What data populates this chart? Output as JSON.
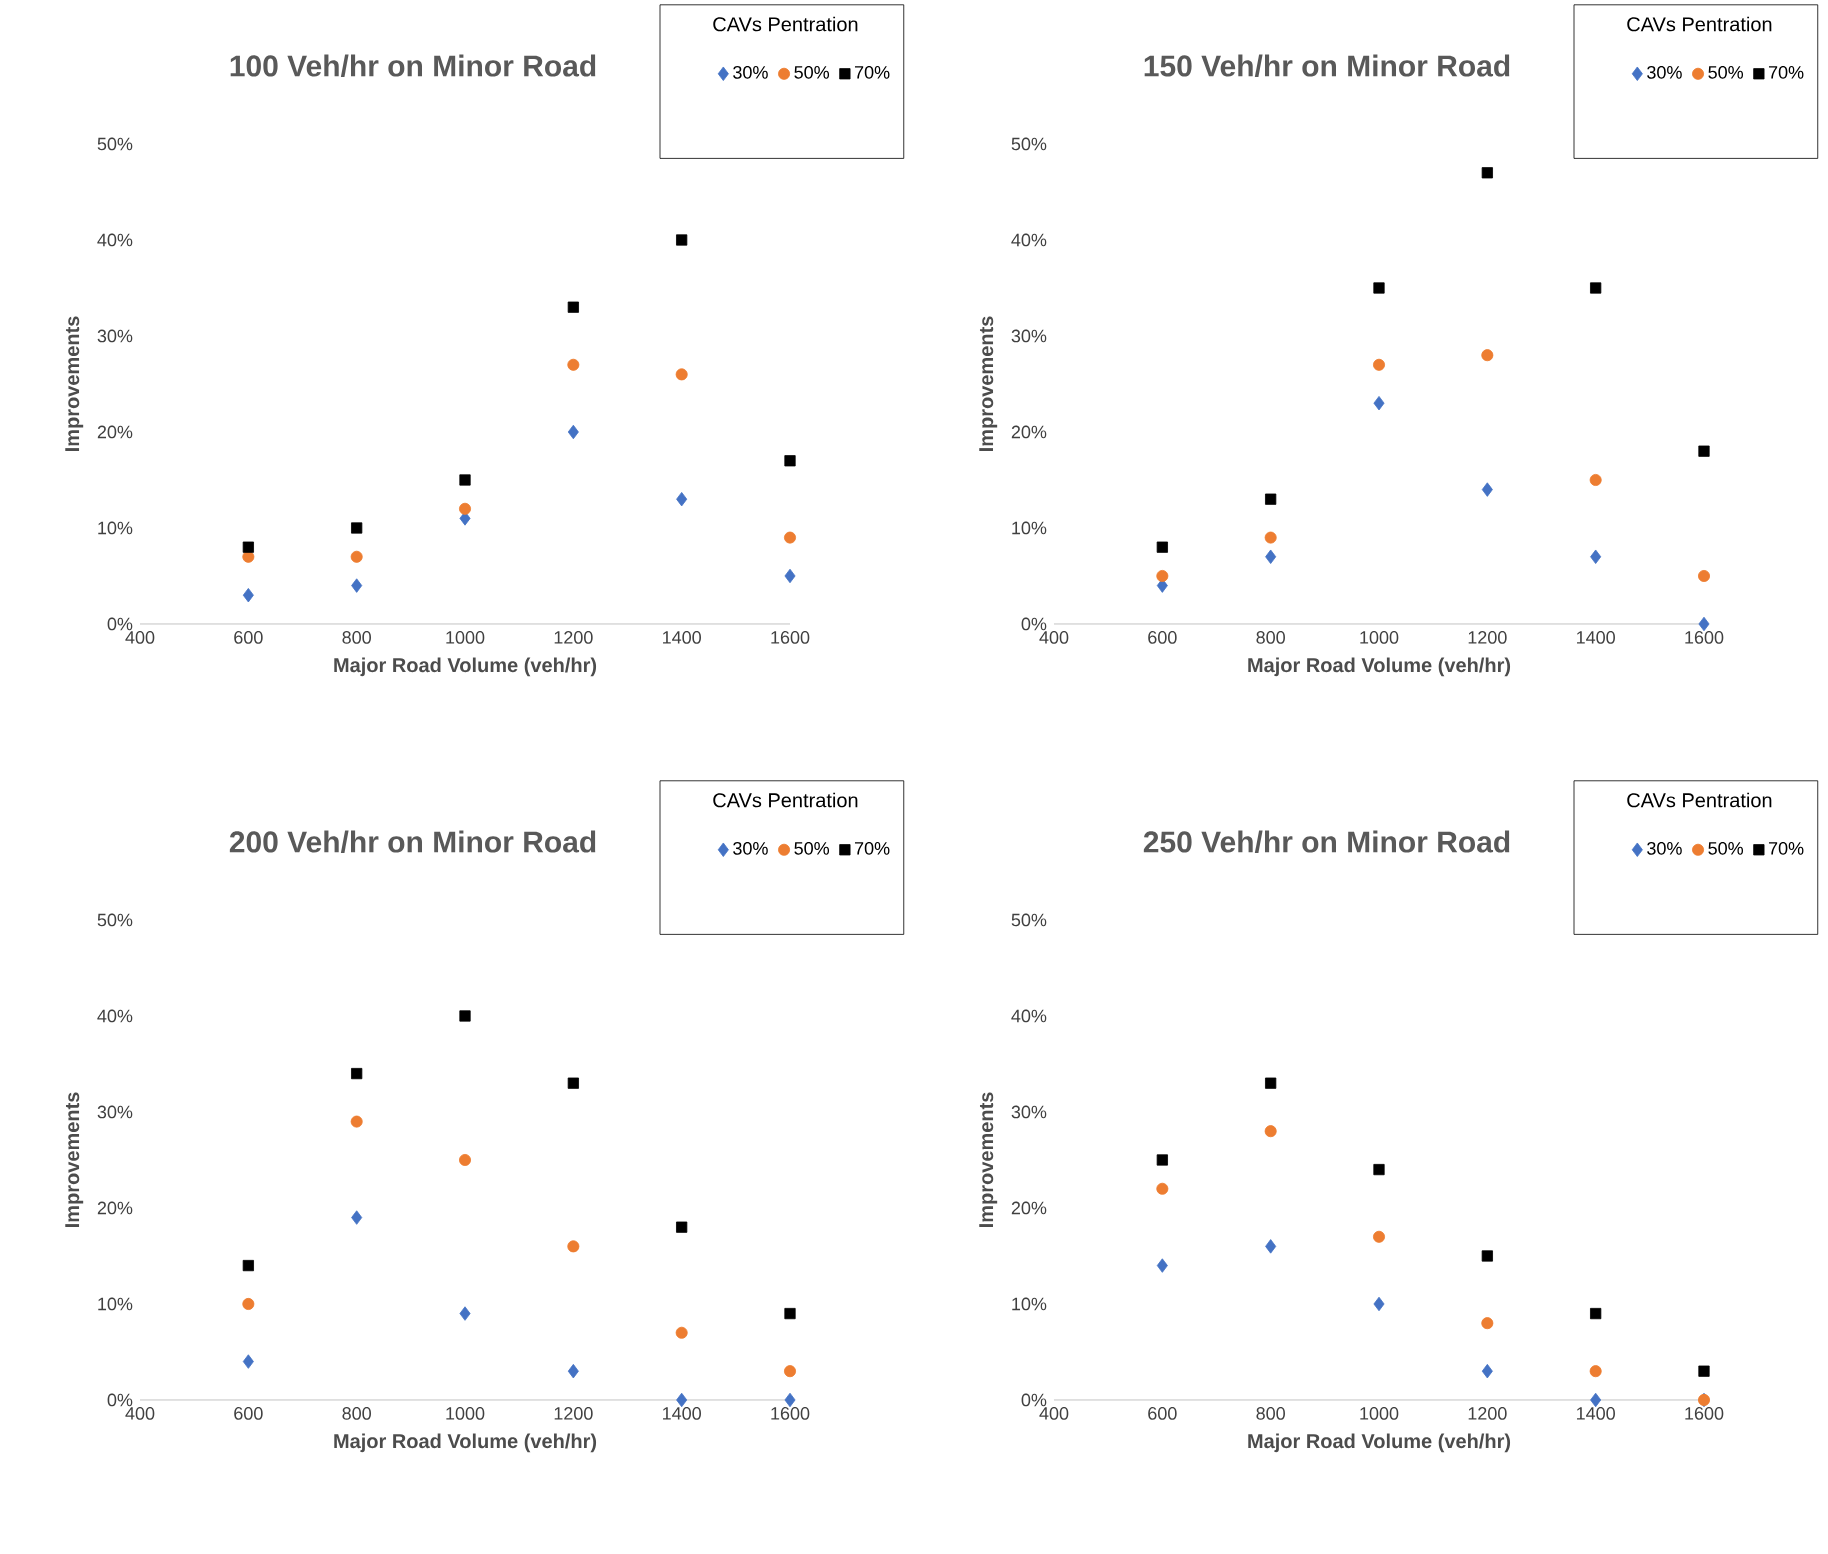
{
  "chart_data": [
    {
      "type": "scatter",
      "title": "100 Veh/hr on Minor Road",
      "xlabel": "Major Road Volume (veh/hr)",
      "ylabel": "Improvements",
      "legend_title": "CAVs Pentration",
      "legend": "top right",
      "x": [
        600,
        800,
        1000,
        1200,
        1400,
        1600
      ],
      "xlim": [
        400,
        1600
      ],
      "xticks": [
        400,
        600,
        800,
        1000,
        1200,
        1400,
        1600
      ],
      "ylim": [
        0,
        50
      ],
      "yticks": [
        {
          "value": 0,
          "label": "0%"
        },
        {
          "value": 10,
          "label": "10%"
        },
        {
          "value": 20,
          "label": "20%"
        },
        {
          "value": 30,
          "label": "30%"
        },
        {
          "value": 40,
          "label": "40%"
        },
        {
          "value": 50,
          "label": "50%"
        }
      ],
      "series": [
        {
          "name": "30%",
          "color": "#4472c4",
          "marker": "diamond",
          "values": [
            3,
            4,
            11,
            20,
            13,
            5
          ]
        },
        {
          "name": "50%",
          "color": "#ed7d31",
          "marker": "circle",
          "values": [
            7,
            7,
            12,
            27,
            26,
            9
          ]
        },
        {
          "name": "70%",
          "color": "#000000",
          "marker": "square",
          "values": [
            8,
            10,
            15,
            33,
            40,
            17
          ]
        }
      ]
    },
    {
      "type": "scatter",
      "title": "150 Veh/hr on Minor Road",
      "xlabel": "Major Road Volume (veh/hr)",
      "ylabel": "Improvements",
      "legend_title": "CAVs Pentration",
      "legend": "top right",
      "x": [
        600,
        800,
        1000,
        1200,
        1400,
        1600
      ],
      "xlim": [
        400,
        1600
      ],
      "xticks": [
        400,
        600,
        800,
        1000,
        1200,
        1400,
        1600
      ],
      "ylim": [
        0,
        50
      ],
      "yticks": [
        {
          "value": 0,
          "label": "0%"
        },
        {
          "value": 10,
          "label": "10%"
        },
        {
          "value": 20,
          "label": "20%"
        },
        {
          "value": 30,
          "label": "30%"
        },
        {
          "value": 40,
          "label": "40%"
        },
        {
          "value": 50,
          "label": "50%"
        }
      ],
      "series": [
        {
          "name": "30%",
          "color": "#4472c4",
          "marker": "diamond",
          "values": [
            4,
            7,
            23,
            14,
            7,
            0
          ]
        },
        {
          "name": "50%",
          "color": "#ed7d31",
          "marker": "circle",
          "values": [
            5,
            9,
            27,
            28,
            15,
            5
          ]
        },
        {
          "name": "70%",
          "color": "#000000",
          "marker": "square",
          "values": [
            8,
            13,
            35,
            47,
            35,
            18
          ]
        }
      ]
    },
    {
      "type": "scatter",
      "title": "200 Veh/hr on Minor Road",
      "xlabel": "Major Road Volume (veh/hr)",
      "ylabel": "Improvements",
      "legend_title": "CAVs Pentration",
      "legend": "top right",
      "x": [
        600,
        800,
        1000,
        1200,
        1400,
        1600
      ],
      "xlim": [
        400,
        1600
      ],
      "xticks": [
        400,
        600,
        800,
        1000,
        1200,
        1400,
        1600
      ],
      "ylim": [
        0,
        50
      ],
      "yticks": [
        {
          "value": 0,
          "label": "0%"
        },
        {
          "value": 10,
          "label": "10%"
        },
        {
          "value": 20,
          "label": "20%"
        },
        {
          "value": 30,
          "label": "30%"
        },
        {
          "value": 40,
          "label": "40%"
        },
        {
          "value": 50,
          "label": "50%"
        }
      ],
      "series": [
        {
          "name": "30%",
          "color": "#4472c4",
          "marker": "diamond",
          "values": [
            4,
            19,
            9,
            3,
            0,
            0
          ]
        },
        {
          "name": "50%",
          "color": "#ed7d31",
          "marker": "circle",
          "values": [
            10,
            29,
            25,
            16,
            7,
            3
          ]
        },
        {
          "name": "70%",
          "color": "#000000",
          "marker": "square",
          "values": [
            14,
            34,
            40,
            33,
            18,
            9
          ]
        }
      ]
    },
    {
      "type": "scatter",
      "title": "250 Veh/hr on Minor Road",
      "xlabel": "Major Road Volume (veh/hr)",
      "ylabel": "Improvements",
      "legend_title": "CAVs Pentration",
      "legend": "top right",
      "x": [
        600,
        800,
        1000,
        1200,
        1400,
        1600
      ],
      "xlim": [
        400,
        1600
      ],
      "xticks": [
        400,
        600,
        800,
        1000,
        1200,
        1400,
        1600
      ],
      "ylim": [
        0,
        50
      ],
      "yticks": [
        {
          "value": 0,
          "label": "0%"
        },
        {
          "value": 10,
          "label": "10%"
        },
        {
          "value": 20,
          "label": "20%"
        },
        {
          "value": 30,
          "label": "30%"
        },
        {
          "value": 40,
          "label": "40%"
        },
        {
          "value": 50,
          "label": "50%"
        }
      ],
      "series": [
        {
          "name": "30%",
          "color": "#4472c4",
          "marker": "diamond",
          "values": [
            14,
            16,
            10,
            3,
            0,
            0
          ]
        },
        {
          "name": "50%",
          "color": "#ed7d31",
          "marker": "circle",
          "values": [
            22,
            28,
            17,
            8,
            3,
            0
          ]
        },
        {
          "name": "70%",
          "color": "#000000",
          "marker": "square",
          "values": [
            25,
            33,
            24,
            15,
            9,
            3
          ]
        }
      ]
    }
  ]
}
